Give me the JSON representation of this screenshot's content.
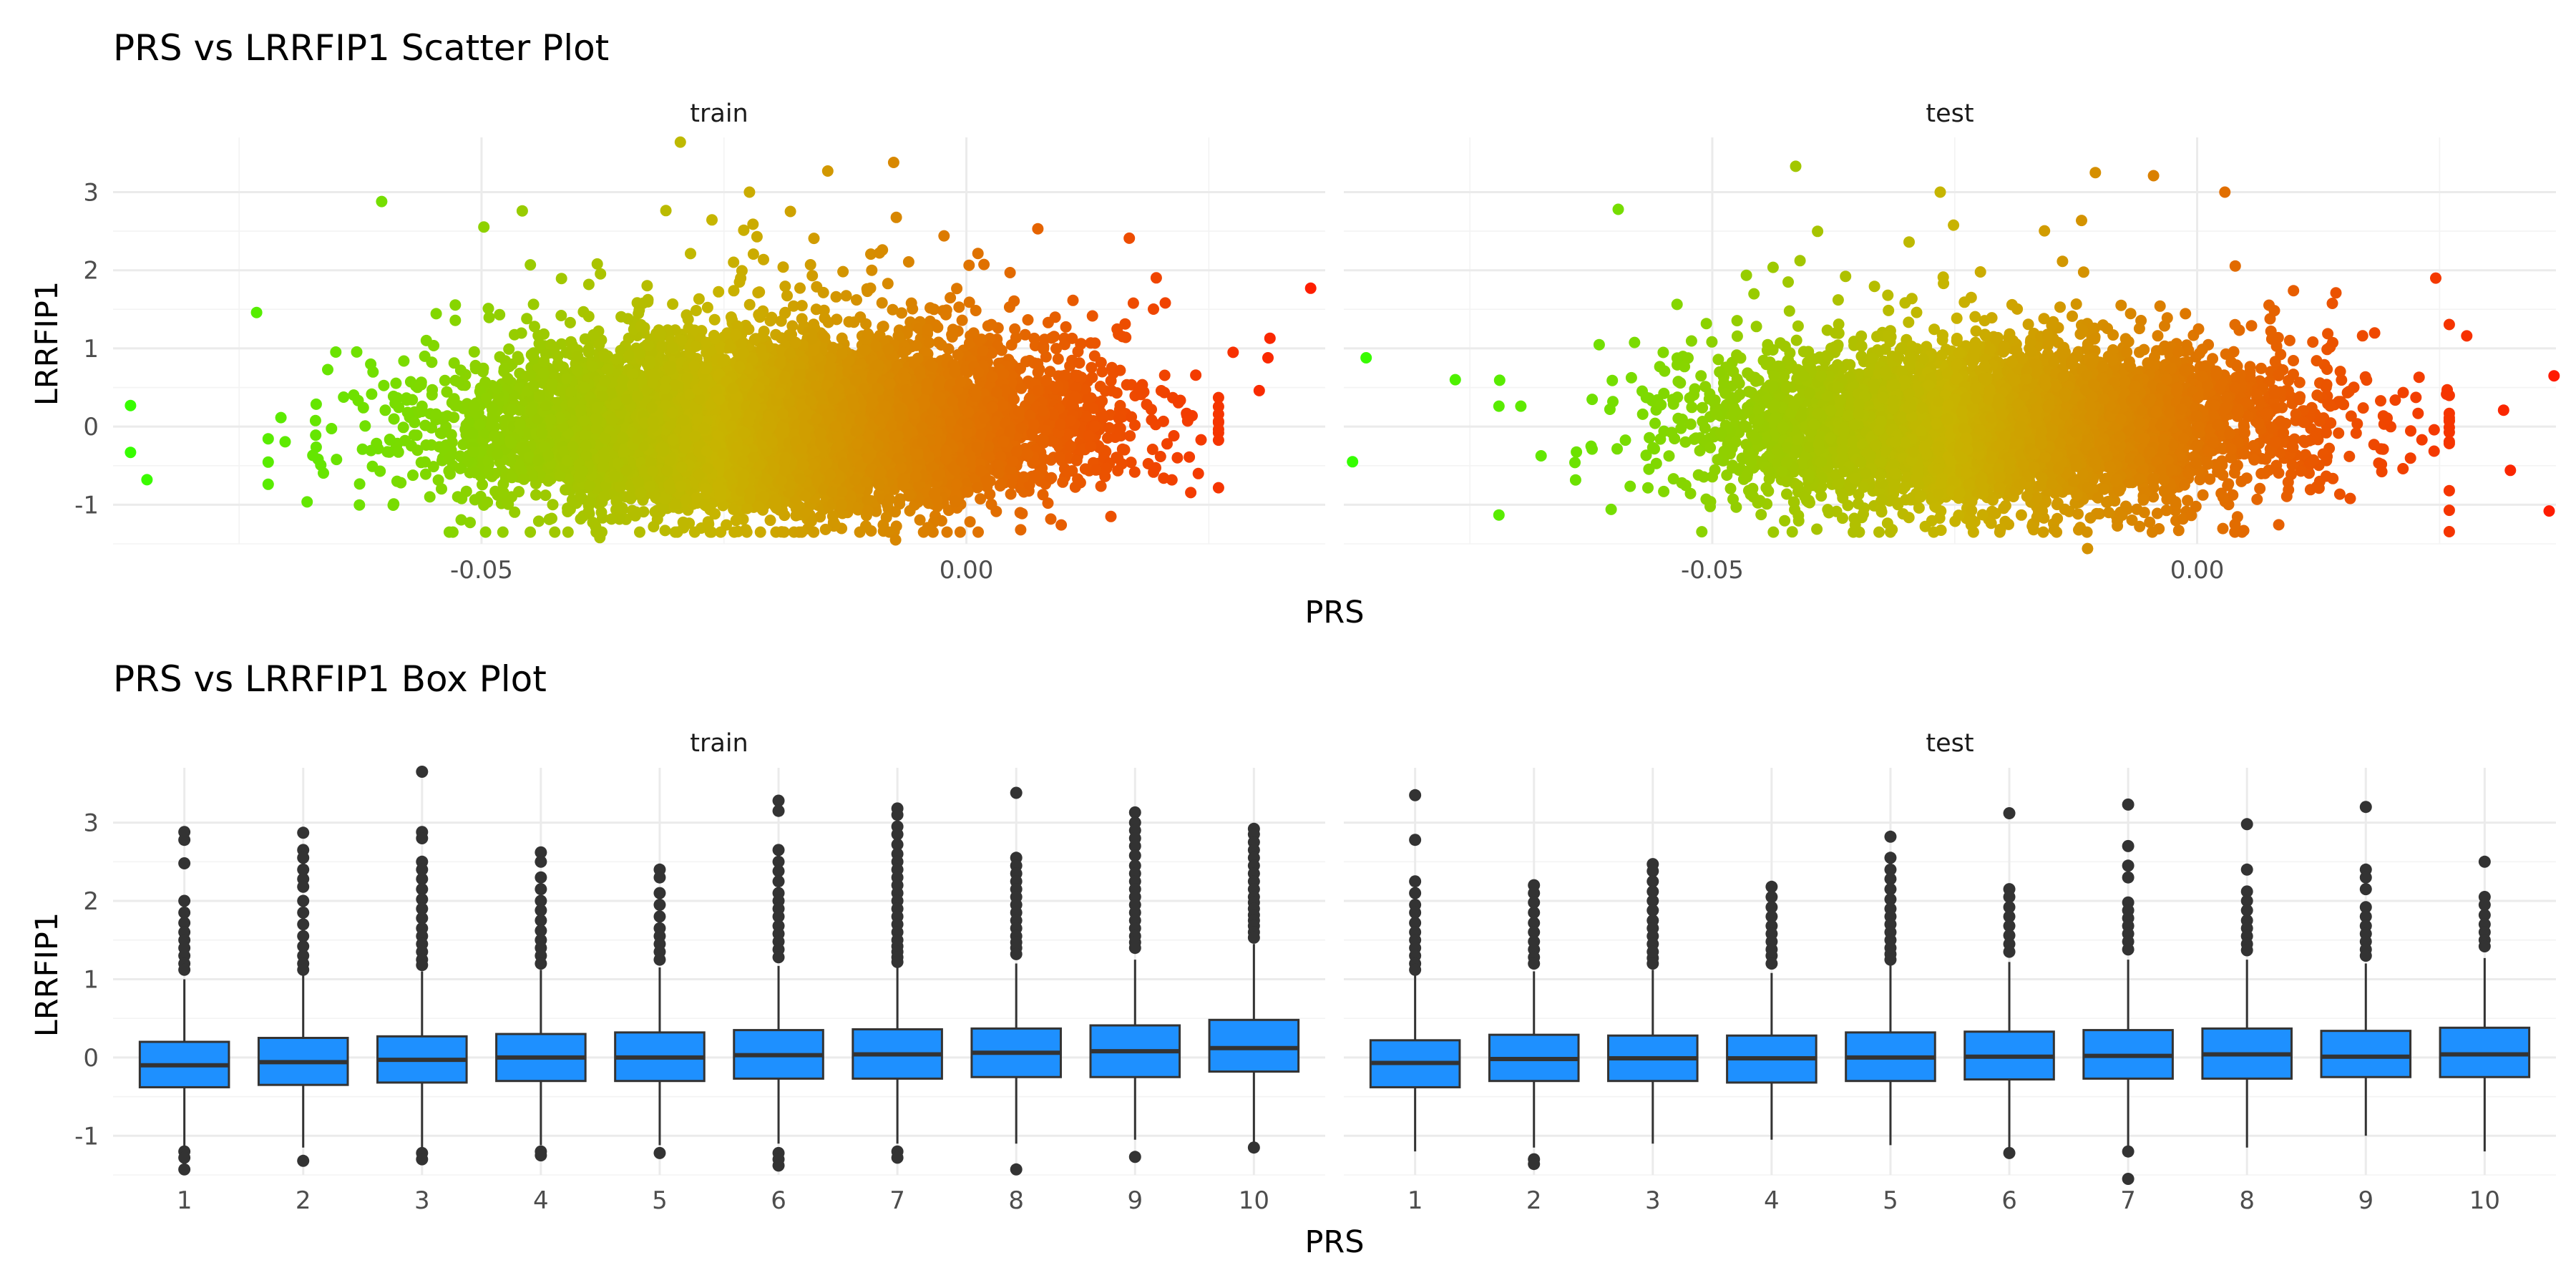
{
  "chart_data": [
    {
      "type": "scatter",
      "title": "PRS vs LRRFIP1 Scatter Plot",
      "xlabel": "PRS",
      "ylabel": "LRRFIP1",
      "panels": [
        "train",
        "test"
      ],
      "x_ticks": [
        "-0.05",
        "0.00"
      ],
      "y_ticks": [
        "-1",
        "0",
        "1",
        "2",
        "3"
      ],
      "xlim": [
        -0.088,
        0.037
      ],
      "ylim": [
        -1.5,
        3.7
      ],
      "color_scale": {
        "low": "#33ff00",
        "mid": "#c8b400",
        "high": "#ff1a00"
      },
      "n_points": {
        "train": 9000,
        "test": 5000
      },
      "highlighted_points": {
        "train": [
          {
            "x": -0.0862,
            "y": 0.27
          },
          {
            "x": -0.0862,
            "y": -0.33
          },
          {
            "x": -0.0845,
            "y": -0.68
          },
          {
            "x": -0.0295,
            "y": 3.64
          },
          {
            "x": -0.0603,
            "y": 2.88
          },
          {
            "x": -0.0458,
            "y": 2.76
          },
          {
            "x": -0.0075,
            "y": 3.38
          },
          {
            "x": -0.0143,
            "y": 3.27
          },
          {
            "x": -0.0732,
            "y": 1.46
          },
          {
            "x": 0.0313,
            "y": 1.13
          },
          {
            "x": 0.0311,
            "y": 0.88
          },
          {
            "x": 0.0275,
            "y": 0.95
          },
          {
            "x": 0.0302,
            "y": 0.46
          },
          {
            "x": 0.0168,
            "y": 2.41
          },
          {
            "x": 0.0045,
            "y": 1.97
          },
          {
            "x": 0.0355,
            "y": 1.77
          },
          {
            "x": -0.0073,
            "y": -1.45
          },
          {
            "x": -0.0378,
            "y": -1.42
          },
          {
            "x": 0.0149,
            "y": -1.15
          }
        ],
        "test": [
          {
            "x": -0.0871,
            "y": -0.45
          },
          {
            "x": -0.0857,
            "y": 0.88
          },
          {
            "x": -0.0765,
            "y": 0.6
          },
          {
            "x": -0.0597,
            "y": 2.78
          },
          {
            "x": -0.0414,
            "y": 3.33
          },
          {
            "x": -0.0105,
            "y": 3.25
          },
          {
            "x": -0.0045,
            "y": 3.21
          },
          {
            "x": 0.0368,
            "y": 0.65
          },
          {
            "x": 0.0323,
            "y": -0.56
          },
          {
            "x": 0.0363,
            "y": -1.08
          },
          {
            "x": 0.0246,
            "y": 1.9
          },
          {
            "x": -0.0113,
            "y": -1.56
          },
          {
            "x": 0.0278,
            "y": 1.16
          },
          {
            "x": 0.0316,
            "y": 0.21
          }
        ]
      }
    },
    {
      "type": "box",
      "title": "PRS vs LRRFIP1 Box Plot",
      "xlabel": "PRS",
      "ylabel": "LRRFIP1",
      "categories": [
        "1",
        "2",
        "3",
        "4",
        "5",
        "6",
        "7",
        "8",
        "9",
        "10"
      ],
      "y_ticks": [
        "-1",
        "0",
        "1",
        "2",
        "3"
      ],
      "ylim": [
        -1.5,
        3.7
      ],
      "fill": "#1e90ff",
      "panels": [
        {
          "name": "train",
          "boxes": [
            {
              "q1": -0.38,
              "median": -0.1,
              "q3": 0.2,
              "lower": -1.15,
              "upper": 1.0,
              "outliers": [
                2.88,
                2.78,
                2.48,
                2.0,
                1.85,
                1.72,
                1.6,
                1.5,
                1.4,
                1.3,
                1.2,
                1.12,
                -1.2,
                -1.28,
                -1.43
              ]
            },
            {
              "q1": -0.35,
              "median": -0.06,
              "q3": 0.25,
              "lower": -1.15,
              "upper": 1.05,
              "outliers": [
                2.87,
                2.65,
                2.55,
                2.4,
                2.28,
                2.18,
                2.0,
                1.85,
                1.7,
                1.55,
                1.42,
                1.3,
                1.2,
                1.12,
                -1.32
              ]
            },
            {
              "q1": -0.32,
              "median": -0.03,
              "q3": 0.27,
              "lower": -1.15,
              "upper": 1.1,
              "outliers": [
                3.65,
                2.88,
                2.8,
                2.5,
                2.4,
                2.28,
                2.15,
                2.02,
                1.9,
                1.78,
                1.65,
                1.55,
                1.45,
                1.35,
                1.25,
                1.18,
                -1.22,
                -1.3
              ]
            },
            {
              "q1": -0.3,
              "median": 0.0,
              "q3": 0.3,
              "lower": -1.12,
              "upper": 1.12,
              "outliers": [
                2.62,
                2.5,
                2.3,
                2.15,
                2.0,
                1.88,
                1.75,
                1.62,
                1.5,
                1.4,
                1.3,
                1.2,
                -1.2,
                -1.25
              ]
            },
            {
              "q1": -0.3,
              "median": 0.0,
              "q3": 0.32,
              "lower": -1.12,
              "upper": 1.15,
              "outliers": [
                2.4,
                2.3,
                2.1,
                1.95,
                1.8,
                1.65,
                1.55,
                1.45,
                1.35,
                1.25,
                -1.22
              ]
            },
            {
              "q1": -0.27,
              "median": 0.03,
              "q3": 0.35,
              "lower": -1.1,
              "upper": 1.17,
              "outliers": [
                3.28,
                3.15,
                2.65,
                2.5,
                2.38,
                2.25,
                2.1,
                2.0,
                1.9,
                1.8,
                1.68,
                1.58,
                1.48,
                1.38,
                1.28,
                -1.22,
                -1.3,
                -1.38
              ]
            },
            {
              "q1": -0.27,
              "median": 0.04,
              "q3": 0.36,
              "lower": -1.1,
              "upper": 1.18,
              "outliers": [
                3.18,
                3.1,
                2.95,
                2.85,
                2.72,
                2.6,
                2.5,
                2.4,
                2.3,
                2.2,
                2.1,
                2.0,
                1.9,
                1.8,
                1.7,
                1.6,
                1.5,
                1.42,
                1.35,
                1.28,
                1.22,
                -1.2,
                -1.28
              ]
            },
            {
              "q1": -0.25,
              "median": 0.06,
              "q3": 0.37,
              "lower": -1.1,
              "upper": 1.2,
              "outliers": [
                3.38,
                2.55,
                2.45,
                2.35,
                2.25,
                2.15,
                2.05,
                1.95,
                1.85,
                1.75,
                1.65,
                1.55,
                1.47,
                1.4,
                1.32,
                -1.43
              ]
            },
            {
              "q1": -0.25,
              "median": 0.08,
              "q3": 0.41,
              "lower": -1.05,
              "upper": 1.25,
              "outliers": [
                3.13,
                3.0,
                2.9,
                2.8,
                2.7,
                2.58,
                2.45,
                2.35,
                2.25,
                2.15,
                2.05,
                1.95,
                1.85,
                1.75,
                1.65,
                1.55,
                1.47,
                1.4,
                -1.27
              ]
            },
            {
              "q1": -0.18,
              "median": 0.12,
              "q3": 0.48,
              "lower": -1.1,
              "upper": 1.45,
              "outliers": [
                2.92,
                2.85,
                2.75,
                2.65,
                2.55,
                2.45,
                2.35,
                2.25,
                2.15,
                2.05,
                1.98,
                1.9,
                1.82,
                1.75,
                1.68,
                1.6,
                1.53,
                -1.15
              ]
            }
          ]
        },
        {
          "name": "test",
          "boxes": [
            {
              "q1": -0.38,
              "median": -0.07,
              "q3": 0.22,
              "lower": -1.2,
              "upper": 1.05,
              "outliers": [
                3.35,
                2.78,
                2.25,
                2.1,
                1.95,
                1.85,
                1.72,
                1.6,
                1.5,
                1.4,
                1.3,
                1.2,
                1.12
              ]
            },
            {
              "q1": -0.3,
              "median": -0.02,
              "q3": 0.29,
              "lower": -1.15,
              "upper": 1.1,
              "outliers": [
                2.2,
                2.1,
                1.98,
                1.85,
                1.72,
                1.6,
                1.48,
                1.38,
                1.28,
                1.2,
                -1.3,
                -1.36
              ]
            },
            {
              "q1": -0.3,
              "median": -0.01,
              "q3": 0.28,
              "lower": -1.1,
              "upper": 1.12,
              "outliers": [
                2.47,
                2.38,
                2.25,
                2.12,
                2.0,
                1.88,
                1.75,
                1.65,
                1.55,
                1.45,
                1.35,
                1.27,
                1.2
              ]
            },
            {
              "q1": -0.32,
              "median": -0.01,
              "q3": 0.28,
              "lower": -1.05,
              "upper": 1.08,
              "outliers": [
                2.18,
                2.05,
                1.92,
                1.8,
                1.68,
                1.58,
                1.48,
                1.38,
                1.3,
                1.2
              ]
            },
            {
              "q1": -0.3,
              "median": 0.0,
              "q3": 0.32,
              "lower": -1.12,
              "upper": 1.2,
              "outliers": [
                2.82,
                2.55,
                2.4,
                2.28,
                2.15,
                2.02,
                1.9,
                1.8,
                1.7,
                1.6,
                1.5,
                1.4,
                1.32,
                1.25
              ]
            },
            {
              "q1": -0.28,
              "median": 0.01,
              "q3": 0.33,
              "lower": -1.15,
              "upper": 1.22,
              "outliers": [
                3.12,
                2.15,
                2.05,
                1.92,
                1.8,
                1.68,
                1.56,
                1.45,
                1.35,
                -1.22
              ]
            },
            {
              "q1": -0.27,
              "median": 0.02,
              "q3": 0.35,
              "lower": -1.15,
              "upper": 1.25,
              "outliers": [
                3.23,
                2.7,
                2.45,
                2.3,
                1.98,
                1.88,
                1.78,
                1.68,
                1.58,
                1.48,
                1.38,
                -1.2,
                -1.55
              ]
            },
            {
              "q1": -0.27,
              "median": 0.04,
              "q3": 0.37,
              "lower": -1.15,
              "upper": 1.25,
              "outliers": [
                2.98,
                2.4,
                2.12,
                2.0,
                1.88,
                1.75,
                1.65,
                1.55,
                1.45,
                1.37
              ]
            },
            {
              "q1": -0.25,
              "median": 0.01,
              "q3": 0.34,
              "lower": -1.0,
              "upper": 1.2,
              "outliers": [
                3.2,
                2.4,
                2.3,
                2.15,
                1.92,
                1.8,
                1.68,
                1.58,
                1.48,
                1.38,
                1.3
              ]
            },
            {
              "q1": -0.25,
              "median": 0.04,
              "q3": 0.38,
              "lower": -1.2,
              "upper": 1.27,
              "outliers": [
                2.5,
                2.05,
                1.95,
                1.82,
                1.7,
                1.6,
                1.5,
                1.42
              ]
            }
          ]
        }
      ]
    }
  ]
}
